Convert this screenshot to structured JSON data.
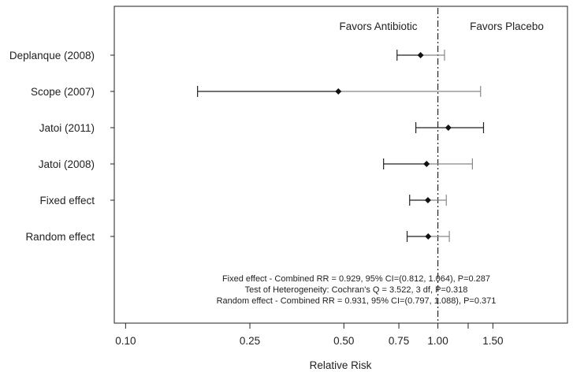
{
  "chart_data": {
    "type": "forest",
    "xlabel": "Relative Risk",
    "x_scale": "log",
    "xlim": [
      0.092,
      2.6
    ],
    "x_ticks": [
      {
        "value": 0.1,
        "label": "0.10"
      },
      {
        "value": 0.25,
        "label": "0.25"
      },
      {
        "value": 0.5,
        "label": "0.50"
      },
      {
        "value": 0.75,
        "label": "0.75"
      },
      {
        "value": 1.0,
        "label": "1.00"
      },
      {
        "value": 1.25,
        "label": ""
      },
      {
        "value": 1.5,
        "label": "1.50"
      }
    ],
    "reference_line": 1.0,
    "annotations": {
      "left": "Favors Antibiotic",
      "right": "Favors Placebo"
    },
    "studies": [
      {
        "label": "Deplanque (2008)",
        "rr": 0.88,
        "lower": 0.74,
        "upper": 1.05
      },
      {
        "label": "Scope (2007)",
        "rr": 0.48,
        "lower": 0.17,
        "upper": 1.37
      },
      {
        "label": "Jatoi (2011)",
        "rr": 1.08,
        "lower": 0.85,
        "upper": 1.4
      },
      {
        "label": "Jatoi (2008)",
        "rr": 0.92,
        "lower": 0.67,
        "upper": 1.29
      },
      {
        "label": "Fixed effect",
        "rr": 0.929,
        "lower": 0.812,
        "upper": 1.064
      },
      {
        "label": "Random effect",
        "rr": 0.931,
        "lower": 0.797,
        "upper": 1.088
      }
    ],
    "summary_text": [
      "Fixed effect - Combined RR = 0.929, 95% CI=(0.812, 1.064), P=0.287",
      "Test of Heterogeneity: Cochran's Q = 3.522, 3 df, P=0.318",
      "Random effect - Combined RR = 0.931, 95% CI=(0.797, 1.088), P=0.371"
    ],
    "colors": {
      "axis": "#222222",
      "ci_dark": "#222222",
      "ci_light": "#888888",
      "point": "#111111"
    }
  }
}
